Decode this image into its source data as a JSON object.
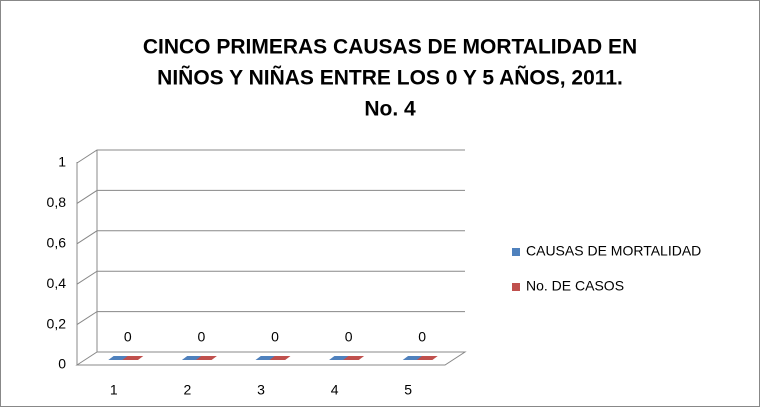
{
  "chart_data": {
    "type": "bar3d",
    "title": [
      "CINCO PRIMERAS CAUSAS DE MORTALIDAD EN",
      "NIÑOS Y NIÑAS ENTRE LOS 0 Y 5 AÑOS, 2011.",
      "No. 4"
    ],
    "categories": [
      "1",
      "2",
      "3",
      "4",
      "5"
    ],
    "series": [
      {
        "name": "CAUSAS DE MORTALIDAD",
        "color": "#4f81bd",
        "values": [
          0,
          0,
          0,
          0,
          0
        ]
      },
      {
        "name": "No. DE CASOS",
        "color": "#c0504d",
        "values": [
          0,
          0,
          0,
          0,
          0
        ]
      }
    ],
    "ylim": [
      0,
      1
    ],
    "yticks": [
      0,
      {
        "value": 0.2,
        "label": "0,2"
      },
      {
        "value": 0.4,
        "label": "0,4"
      },
      {
        "value": 0.6,
        "label": "0,6"
      },
      {
        "value": 0.8,
        "label": "0,8"
      },
      1
    ],
    "grid": true,
    "legend": "right"
  }
}
